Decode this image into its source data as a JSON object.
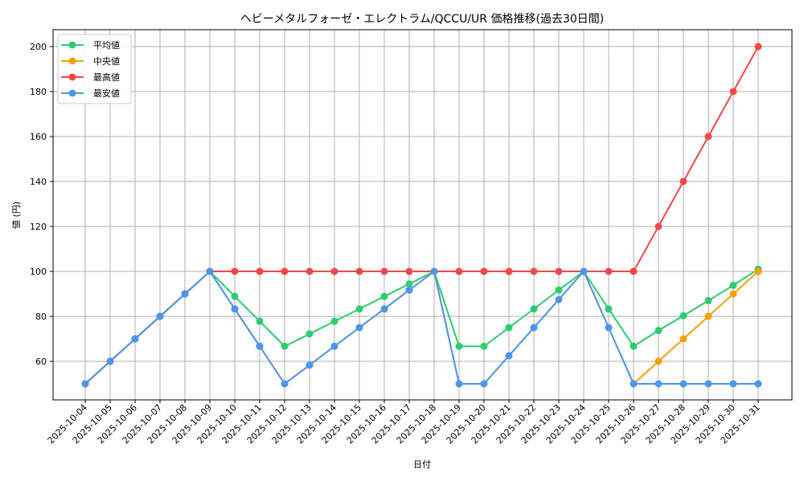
{
  "chart_data": {
    "type": "line",
    "title": "ヘビーメタルフォーゼ・エレクトラム/QCCU/UR 価格推移(過去30日間)",
    "xlabel": "日付",
    "ylabel": "値 (円)",
    "ylim": [
      43,
      207
    ],
    "yticks": [
      60,
      80,
      100,
      120,
      140,
      160,
      180,
      200
    ],
    "grid": true,
    "legend_position": "upper left",
    "x": [
      "2025-10-04",
      "2025-10-05",
      "2025-10-06",
      "2025-10-07",
      "2025-10-08",
      "2025-10-09",
      "2025-10-10",
      "2025-10-11",
      "2025-10-12",
      "2025-10-13",
      "2025-10-14",
      "2025-10-15",
      "2025-10-16",
      "2025-10-17",
      "2025-10-18",
      "2025-10-19",
      "2025-10-20",
      "2025-10-21",
      "2025-10-22",
      "2025-10-23",
      "2025-10-24",
      "2025-10-25",
      "2025-10-26",
      "2025-10-27",
      "2025-10-28",
      "2025-10-29",
      "2025-10-30",
      "2025-10-31"
    ],
    "series": [
      {
        "name": "平均値",
        "color": "#2ecc71",
        "values": [
          50,
          60,
          70,
          80,
          90,
          100,
          88.9,
          77.8,
          66.7,
          72.2,
          77.8,
          83.3,
          88.9,
          94.4,
          100,
          66.7,
          66.7,
          75,
          83.3,
          91.7,
          100,
          83.3,
          66.7,
          73.7,
          80.3,
          87,
          93.8,
          101
        ]
      },
      {
        "name": "中央値",
        "color": "#f5a10a",
        "values": [
          50,
          60,
          70,
          80,
          90,
          100,
          83.3,
          66.7,
          50,
          58.3,
          66.7,
          75,
          83.3,
          91.7,
          100,
          50,
          50,
          62.5,
          75,
          87.5,
          100,
          75,
          50,
          60,
          70,
          80,
          90,
          100
        ]
      },
      {
        "name": "最高値",
        "color": "#f04848",
        "values": [
          50,
          60,
          70,
          80,
          90,
          100,
          100,
          100,
          100,
          100,
          100,
          100,
          100,
          100,
          100,
          100,
          100,
          100,
          100,
          100,
          100,
          100,
          100,
          120,
          140,
          160,
          180,
          200
        ]
      },
      {
        "name": "最安値",
        "color": "#4c96f0",
        "values": [
          50,
          60,
          70,
          80,
          90,
          100,
          83.3,
          66.7,
          50,
          58.3,
          66.7,
          75,
          83.3,
          91.7,
          100,
          50,
          50,
          62.5,
          75,
          87.5,
          100,
          75,
          50,
          50,
          50,
          50,
          50,
          50
        ]
      }
    ]
  },
  "legend": {
    "items": [
      {
        "label": "平均値",
        "color": "#2ecc71"
      },
      {
        "label": "中央値",
        "color": "#f5a10a"
      },
      {
        "label": "最高値",
        "color": "#f04848"
      },
      {
        "label": "最安値",
        "color": "#4c96f0"
      }
    ]
  }
}
